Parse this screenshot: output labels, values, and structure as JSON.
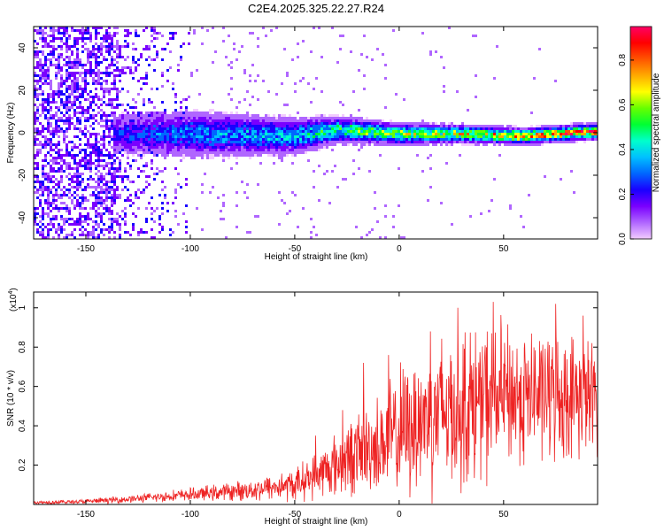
{
  "title": "C2E4.2025.325.22.27.R24",
  "colors": {
    "snr_line": "#ee2222",
    "axis": "#000000",
    "colormap": [
      "#f2ccff",
      "#b066ff",
      "#7a00ff",
      "#1a00ff",
      "#0066ff",
      "#00c0ff",
      "#00ffcc",
      "#00ff33",
      "#66ff00",
      "#ffff00",
      "#ffaa00",
      "#ff5500",
      "#ff0000",
      "#ff0066"
    ]
  },
  "chart_data": [
    {
      "id": "spectrogram",
      "type": "heatmap",
      "title": "C2E4.2025.325.22.27.R24",
      "xlabel": "Height of straight line (km)",
      "ylabel": "Frequency (Hz)",
      "xlim": [
        -175,
        95
      ],
      "ylim": [
        -50,
        50
      ],
      "xticks": [
        -150,
        -100,
        -50,
        0,
        50
      ],
      "yticks": [
        -40,
        -20,
        0,
        20,
        40
      ],
      "colorbar": {
        "label": "Normalized spectral amplitude",
        "range": [
          0.0,
          0.95
        ],
        "ticks": [
          0.0,
          0.2,
          0.4,
          0.6,
          0.8
        ]
      },
      "band": {
        "description": "narrow energy band near 0 Hz; amplitude grows with height, scattered noise below -100 km",
        "center_hz": [
          [
            -130,
            0
          ],
          [
            -100,
            0
          ],
          [
            -50,
            -1
          ],
          [
            -30,
            2
          ],
          [
            0,
            0
          ],
          [
            30,
            0
          ],
          [
            60,
            -1
          ],
          [
            90,
            1
          ]
        ],
        "half_width_hz": [
          [
            -135,
            8
          ],
          [
            -100,
            9
          ],
          [
            -50,
            7
          ],
          [
            -30,
            5
          ],
          [
            0,
            4
          ],
          [
            50,
            3
          ],
          [
            92,
            3
          ]
        ],
        "amplitude": [
          [
            -135,
            0.25
          ],
          [
            -100,
            0.35
          ],
          [
            -50,
            0.42
          ],
          [
            -30,
            0.55
          ],
          [
            0,
            0.65
          ],
          [
            30,
            0.72
          ],
          [
            50,
            0.85
          ],
          [
            92,
            0.9
          ]
        ],
        "noise_until_km": -100
      }
    },
    {
      "id": "snr",
      "type": "line",
      "xlabel": "Height of straight line (km)",
      "ylabel": "SNR (10 * v/v)",
      "yscale_label": "(x10",
      "yscale_exp": "4",
      "yscale_close": ")",
      "xlim": [
        -175,
        95
      ],
      "ylim": [
        0,
        1.08
      ],
      "xticks": [
        -150,
        -100,
        -50,
        0,
        50
      ],
      "yticks": [
        0.2,
        0.4,
        0.6,
        0.8,
        1
      ],
      "series": [
        {
          "name": "SNR",
          "envelope_x": [
            -175,
            -150,
            -125,
            -100,
            -75,
            -50,
            -40,
            -30,
            -20,
            -10,
            0,
            10,
            20,
            30,
            40,
            50,
            60,
            70,
            80,
            92
          ],
          "envelope_mean": [
            0.01,
            0.015,
            0.03,
            0.05,
            0.07,
            0.1,
            0.15,
            0.2,
            0.26,
            0.3,
            0.36,
            0.43,
            0.48,
            0.5,
            0.52,
            0.55,
            0.55,
            0.56,
            0.55,
            0.55
          ],
          "envelope_spread": [
            0.01,
            0.015,
            0.025,
            0.04,
            0.06,
            0.1,
            0.14,
            0.2,
            0.25,
            0.3,
            0.4,
            0.45,
            0.5,
            0.5,
            0.48,
            0.45,
            0.42,
            0.4,
            0.38,
            0.35
          ],
          "peak_values": [
            [
              -40,
              0.35
            ],
            [
              -27,
              0.48
            ],
            [
              -17,
              0.72
            ],
            [
              -5,
              0.76
            ],
            [
              15,
              0.88
            ],
            [
              28,
              1.0
            ],
            [
              45,
              1.03
            ],
            [
              75,
              1.02
            ],
            [
              88,
              0.96
            ]
          ]
        }
      ]
    }
  ]
}
